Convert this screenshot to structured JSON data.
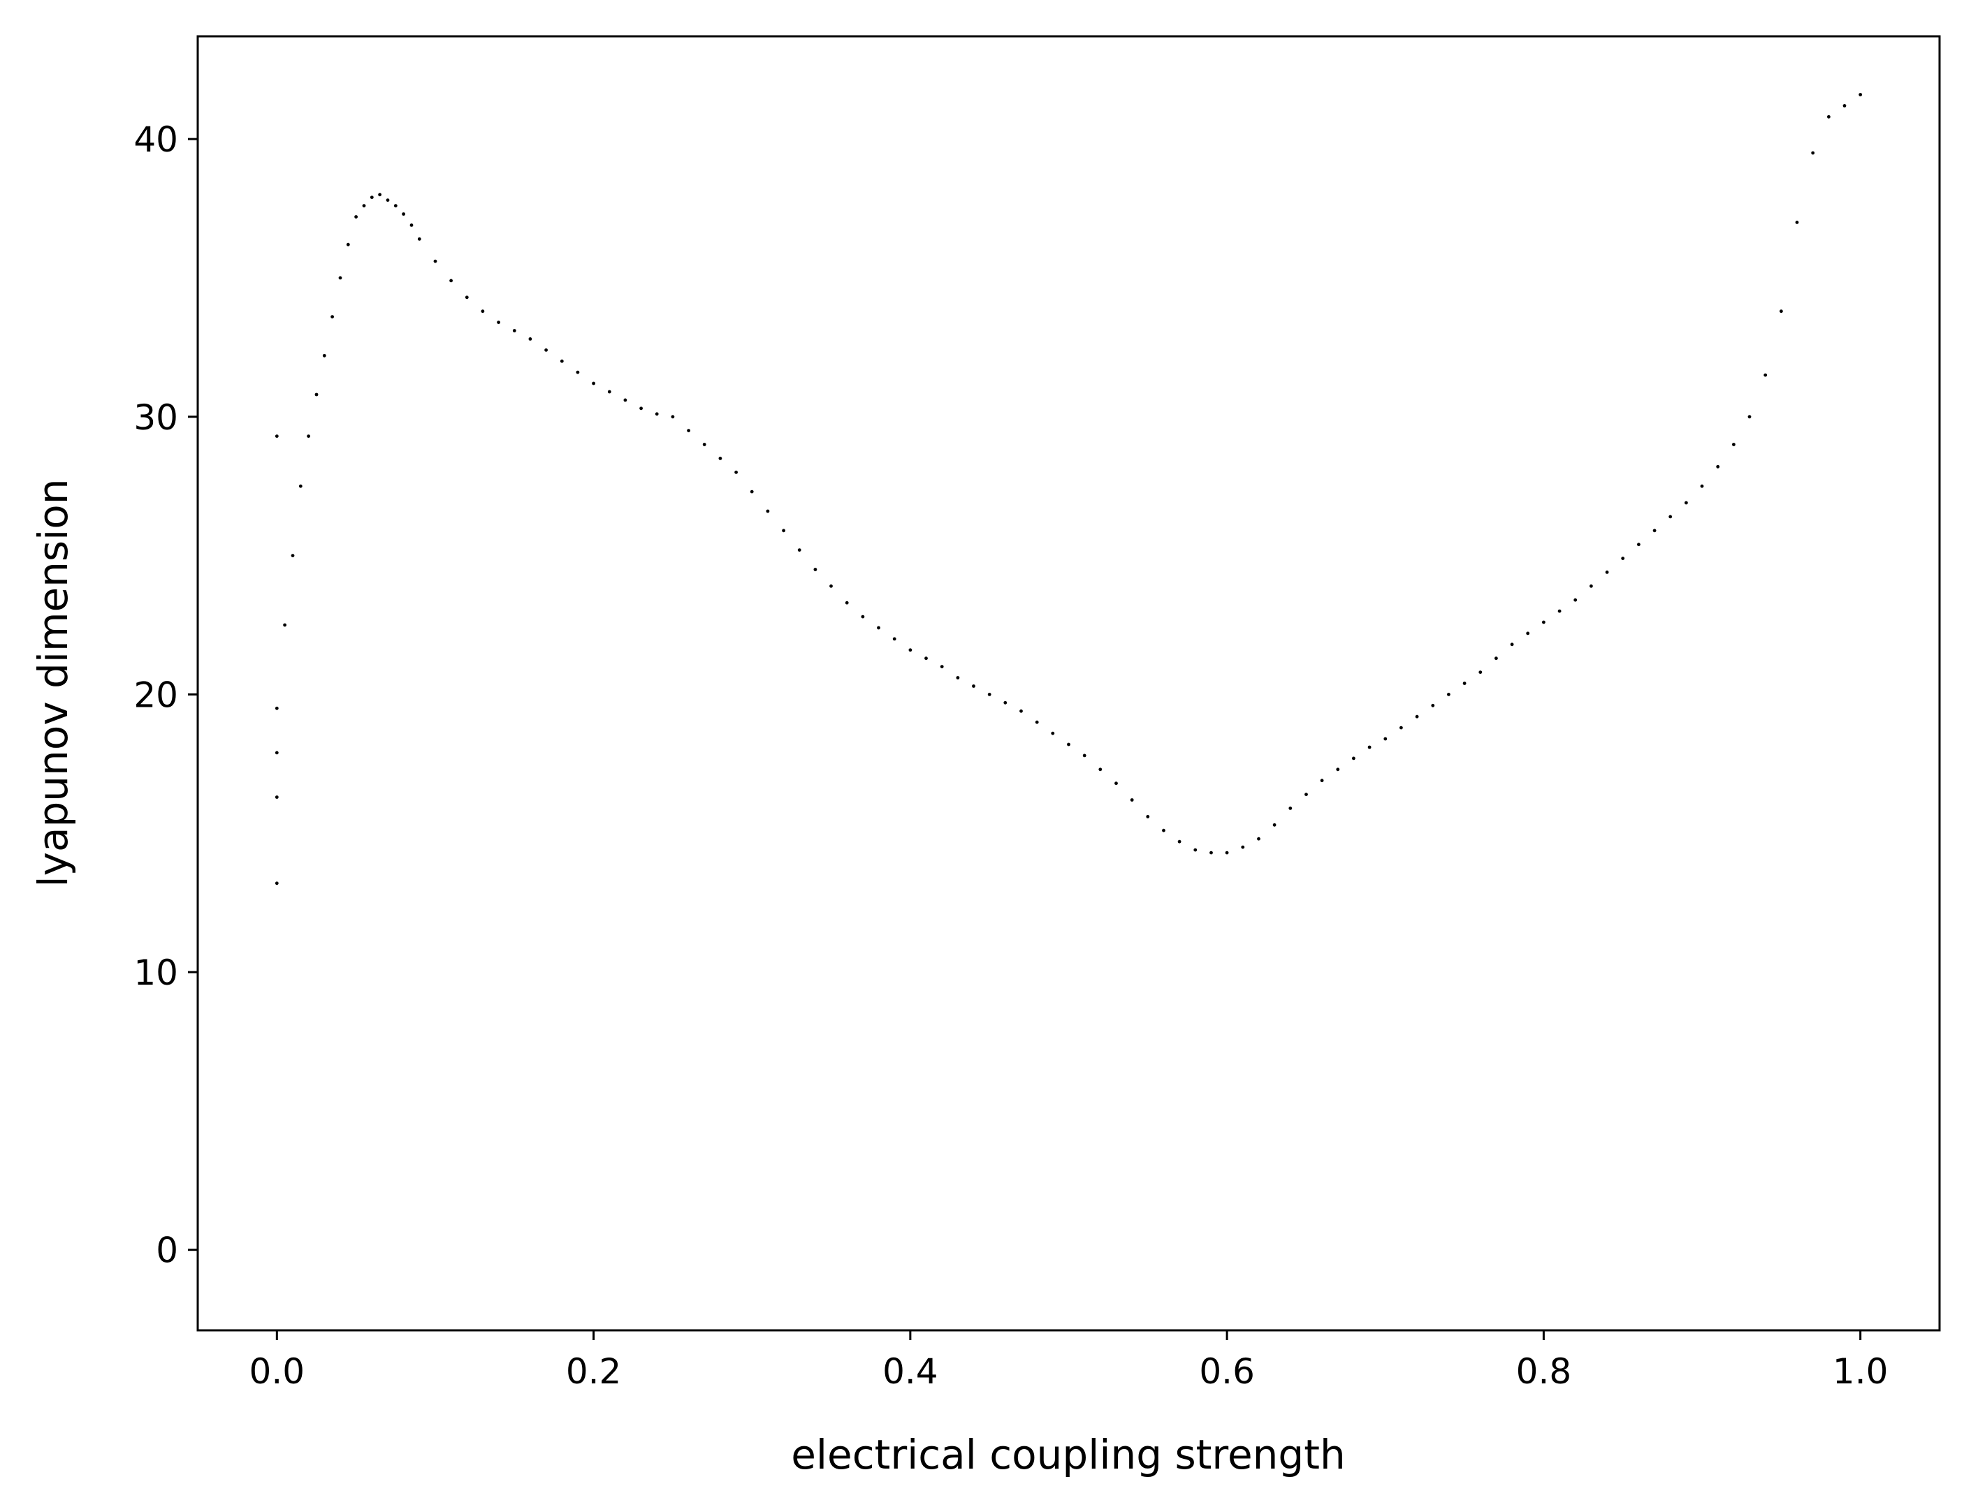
{
  "chart_data": {
    "type": "scatter",
    "title": "",
    "xlabel": "electrical coupling strength",
    "ylabel": "lyapunov dimension",
    "xlim": [
      -0.05,
      1.05
    ],
    "ylim": [
      -2.9,
      43.7
    ],
    "x_ticks": [
      0.0,
      0.2,
      0.4,
      0.6,
      0.8,
      1.0
    ],
    "x_tick_labels": [
      "0.0",
      "0.2",
      "0.4",
      "0.6",
      "0.8",
      "1.0"
    ],
    "y_ticks": [
      0,
      10,
      20,
      30,
      40
    ],
    "y_tick_labels": [
      "0",
      "10",
      "20",
      "30",
      "40"
    ],
    "grid": false,
    "legend": "none",
    "marker_color": "#000000",
    "points_estimated": true,
    "x": [
      0.0,
      0.0,
      0.0,
      0.0,
      0.0,
      0.005,
      0.01,
      0.015,
      0.02,
      0.025,
      0.03,
      0.035,
      0.04,
      0.045,
      0.05,
      0.055,
      0.06,
      0.065,
      0.07,
      0.075,
      0.08,
      0.085,
      0.09,
      0.1,
      0.11,
      0.12,
      0.13,
      0.14,
      0.15,
      0.16,
      0.17,
      0.18,
      0.19,
      0.2,
      0.21,
      0.22,
      0.23,
      0.24,
      0.25,
      0.26,
      0.27,
      0.28,
      0.29,
      0.3,
      0.31,
      0.32,
      0.33,
      0.34,
      0.35,
      0.36,
      0.37,
      0.38,
      0.39,
      0.4,
      0.41,
      0.42,
      0.43,
      0.44,
      0.45,
      0.46,
      0.47,
      0.48,
      0.49,
      0.5,
      0.51,
      0.52,
      0.53,
      0.54,
      0.55,
      0.56,
      0.57,
      0.58,
      0.59,
      0.6,
      0.61,
      0.62,
      0.63,
      0.64,
      0.65,
      0.66,
      0.67,
      0.68,
      0.69,
      0.7,
      0.71,
      0.72,
      0.73,
      0.74,
      0.75,
      0.76,
      0.77,
      0.78,
      0.79,
      0.8,
      0.81,
      0.82,
      0.83,
      0.84,
      0.85,
      0.86,
      0.87,
      0.88,
      0.89,
      0.9,
      0.91,
      0.92,
      0.93,
      0.94,
      0.95,
      0.96,
      0.97,
      0.98,
      0.99,
      1.0
    ],
    "y": [
      13.2,
      16.3,
      17.9,
      19.5,
      29.3,
      22.5,
      25.0,
      27.5,
      29.3,
      30.8,
      32.2,
      33.6,
      35.0,
      36.2,
      37.2,
      37.6,
      37.9,
      38.0,
      37.8,
      37.6,
      37.3,
      36.9,
      36.4,
      35.6,
      34.9,
      34.3,
      33.8,
      33.4,
      33.1,
      32.8,
      32.4,
      32.0,
      31.6,
      31.2,
      30.9,
      30.6,
      30.3,
      30.1,
      30.0,
      29.5,
      29.0,
      28.5,
      28.0,
      27.3,
      26.6,
      25.9,
      25.2,
      24.5,
      23.9,
      23.3,
      22.8,
      22.4,
      22.0,
      21.6,
      21.3,
      21.0,
      20.6,
      20.3,
      20.0,
      19.7,
      19.4,
      19.0,
      18.6,
      18.2,
      17.8,
      17.3,
      16.8,
      16.2,
      15.6,
      15.1,
      14.7,
      14.4,
      14.3,
      14.3,
      14.5,
      14.8,
      15.3,
      15.9,
      16.4,
      16.9,
      17.3,
      17.7,
      18.1,
      18.4,
      18.8,
      19.2,
      19.6,
      20.0,
      20.4,
      20.8,
      21.3,
      21.8,
      22.2,
      22.6,
      23.0,
      23.4,
      23.9,
      24.4,
      24.9,
      25.4,
      25.9,
      26.4,
      26.9,
      27.5,
      28.2,
      29.0,
      30.0,
      31.5,
      33.8,
      37.0,
      39.5,
      40.8,
      41.2,
      41.6
    ]
  }
}
